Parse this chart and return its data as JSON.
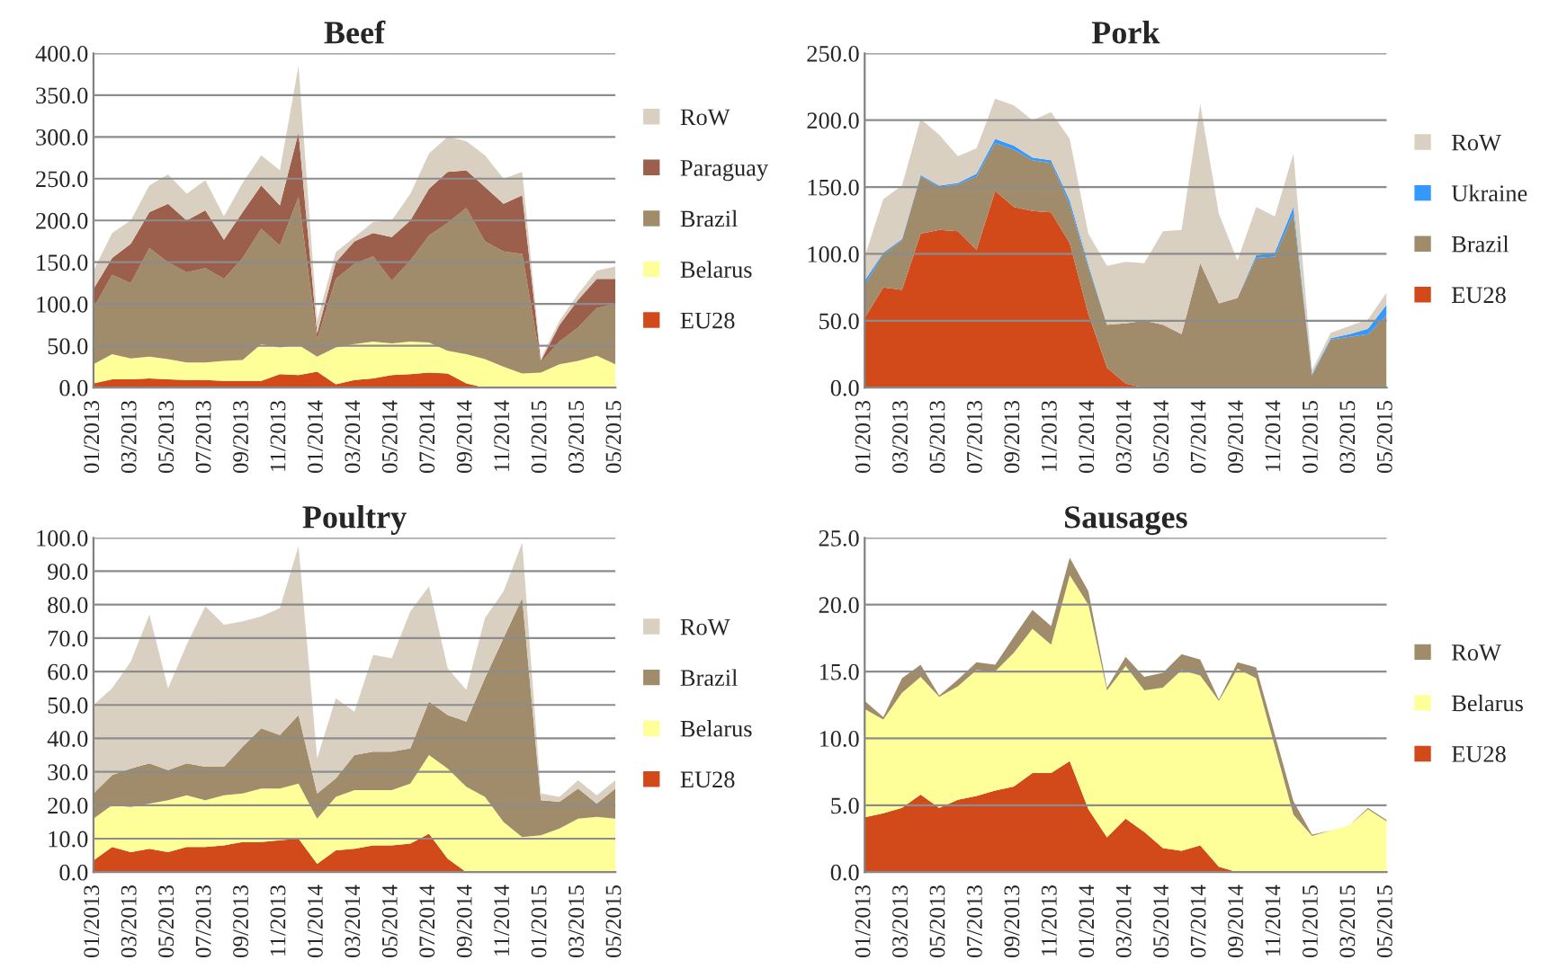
{
  "chart_data": [
    {
      "type": "area",
      "title": "Beef",
      "stacked": true,
      "grid": "y",
      "legend": "right",
      "categories": [
        "01/2013",
        null,
        "03/2013",
        null,
        "05/2013",
        null,
        "07/2013",
        null,
        "09/2013",
        null,
        "11/2013",
        null,
        "01/2014",
        null,
        "03/2014",
        null,
        "05/2014",
        null,
        "07/2014",
        null,
        "09/2014",
        null,
        "11/2014",
        null,
        "01/2015",
        null,
        "03/2015",
        null,
        "05/2015"
      ],
      "ylim": [
        0,
        400
      ],
      "yticks": [
        {
          "value": 0,
          "label": "0.0"
        },
        {
          "value": 50,
          "label": "50.0"
        },
        {
          "value": 100,
          "label": "100.0"
        },
        {
          "value": 150,
          "label": "150.0"
        },
        {
          "value": 200,
          "label": "200.0"
        },
        {
          "value": 250,
          "label": "250.0"
        },
        {
          "value": 300,
          "label": "300.0"
        },
        {
          "value": 350,
          "label": "350.0"
        },
        {
          "value": 400,
          "label": "400.0"
        }
      ],
      "series": [
        {
          "name": "EU28",
          "color": "#d24a1a",
          "values": [
            5,
            10,
            10,
            11,
            10,
            9,
            9,
            8,
            8,
            8,
            16,
            15,
            19,
            4,
            9,
            11,
            15,
            16,
            18,
            17,
            5,
            0,
            0,
            0,
            0,
            0,
            0,
            0,
            0
          ]
        },
        {
          "name": "Belarus",
          "color": "#ffff99",
          "values": [
            23,
            30,
            25,
            26,
            24,
            21,
            21,
            24,
            25,
            44,
            32,
            36,
            18,
            44,
            43,
            44,
            38,
            39,
            36,
            27,
            35,
            34,
            25,
            17,
            18,
            28,
            32,
            38,
            28
          ]
        },
        {
          "name": "Brazil",
          "color": "#a08c6a",
          "values": [
            67,
            95,
            90,
            130,
            116,
            108,
            113,
            98,
            122,
            138,
            122,
            177,
            21,
            82,
            96,
            102,
            75,
            97,
            128,
            153,
            175,
            141,
            138,
            143,
            12,
            27,
            40,
            57,
            72
          ]
        },
        {
          "name": "Paraguay",
          "color": "#9c5f4c",
          "values": [
            23,
            20,
            47,
            43,
            70,
            62,
            69,
            47,
            55,
            52,
            48,
            77,
            7,
            20,
            27,
            28,
            52,
            48,
            56,
            61,
            45,
            65,
            57,
            70,
            2,
            20,
            33,
            35,
            30
          ]
        },
        {
          "name": "RoW",
          "color": "#d9d0c1",
          "values": [
            22,
            30,
            28,
            32,
            35,
            32,
            36,
            28,
            35,
            36,
            42,
            80,
            15,
            12,
            5,
            13,
            20,
            32,
            42,
            42,
            35,
            38,
            30,
            28,
            3,
            5,
            7,
            10,
            15
          ]
        }
      ]
    },
    {
      "type": "area",
      "title": "Pork",
      "stacked": true,
      "grid": "y",
      "legend": "right",
      "categories": [
        "01/2013",
        null,
        "03/2013",
        null,
        "05/2013",
        null,
        "07/2013",
        null,
        "09/2013",
        null,
        "11/2013",
        null,
        "01/2014",
        null,
        "03/2014",
        null,
        "05/2014",
        null,
        "07/2014",
        null,
        "09/2014",
        null,
        "11/2014",
        null,
        "01/2015",
        null,
        "03/2015",
        null,
        "05/2015"
      ],
      "ylim": [
        0,
        250
      ],
      "yticks": [
        {
          "value": 0,
          "label": "0.0"
        },
        {
          "value": 50,
          "label": "50.0"
        },
        {
          "value": 100,
          "label": "100.0"
        },
        {
          "value": 150,
          "label": "150.0"
        },
        {
          "value": 200,
          "label": "200.0"
        },
        {
          "value": 250,
          "label": "250.0"
        }
      ],
      "series": [
        {
          "name": "EU28",
          "color": "#d24a1a",
          "values": [
            52,
            75,
            73,
            115,
            118,
            117,
            103,
            147,
            135,
            132,
            131,
            108,
            55,
            15,
            3,
            0,
            0,
            0,
            0,
            0,
            0,
            0,
            0,
            0,
            0,
            0,
            0,
            0,
            0
          ]
        },
        {
          "name": "Brazil",
          "color": "#a08c6a",
          "values": [
            25,
            25,
            37,
            43,
            32,
            35,
            55,
            36,
            43,
            38,
            37,
            29,
            35,
            32,
            45,
            50,
            47,
            40,
            93,
            63,
            67,
            97,
            98,
            130,
            9,
            36,
            38,
            40,
            54
          ]
        },
        {
          "name": "Ukraine",
          "color": "#3399ff",
          "values": [
            3,
            1,
            1,
            1,
            1,
            1,
            2,
            3,
            3,
            2,
            2,
            3,
            2,
            0,
            0,
            0,
            0,
            0,
            0,
            0,
            0,
            2,
            3,
            5,
            1,
            1,
            2,
            4,
            8
          ]
        },
        {
          "name": "RoW",
          "color": "#d9d0c1",
          "values": [
            18,
            40,
            40,
            42,
            38,
            20,
            19,
            30,
            30,
            28,
            36,
            46,
            23,
            44,
            46,
            43,
            70,
            78,
            119,
            67,
            28,
            36,
            27,
            40,
            3,
            4,
            6,
            7,
            9
          ]
        }
      ]
    },
    {
      "type": "area",
      "title": "Poultry",
      "stacked": true,
      "grid": "y",
      "legend": "right",
      "categories": [
        "01/2013",
        null,
        "03/2013",
        null,
        "05/2013",
        null,
        "07/2013",
        null,
        "09/2013",
        null,
        "11/2013",
        null,
        "01/2014",
        null,
        "03/2014",
        null,
        "05/2014",
        null,
        "07/2014",
        null,
        "09/2014",
        null,
        "11/2014",
        null,
        "01/2015",
        null,
        "03/2015",
        null,
        "05/2015"
      ],
      "ylim": [
        0,
        100
      ],
      "yticks": [
        {
          "value": 0,
          "label": "0.0"
        },
        {
          "value": 10,
          "label": "10.0"
        },
        {
          "value": 20,
          "label": "20.0"
        },
        {
          "value": 30,
          "label": "30.0"
        },
        {
          "value": 40,
          "label": "40.0"
        },
        {
          "value": 50,
          "label": "50.0"
        },
        {
          "value": 60,
          "label": "60.0"
        },
        {
          "value": 70,
          "label": "70.0"
        },
        {
          "value": 80,
          "label": "80.0"
        },
        {
          "value": 90,
          "label": "90.0"
        },
        {
          "value": 100,
          "label": "100.0"
        }
      ],
      "series": [
        {
          "name": "EU28",
          "color": "#d24a1a",
          "values": [
            3.5,
            7.5,
            6,
            7,
            6,
            7.5,
            7.5,
            8,
            9,
            9,
            9.5,
            10,
            2.5,
            6.5,
            7,
            8,
            8,
            8.5,
            11.5,
            4,
            0,
            0,
            0,
            0,
            0,
            0,
            0,
            0,
            0
          ]
        },
        {
          "name": "Belarus",
          "color": "#ffff99",
          "values": [
            12.5,
            12.5,
            13.5,
            13.5,
            15.5,
            15.5,
            14,
            15,
            14.5,
            16,
            15.5,
            16.5,
            13.5,
            16,
            17.5,
            16.5,
            16.5,
            18,
            23.5,
            27,
            25.5,
            22.5,
            15,
            10.5,
            11,
            13,
            16,
            16.5,
            16
          ]
        },
        {
          "name": "Brazil",
          "color": "#a08c6a",
          "values": [
            7.5,
            9,
            11.5,
            12,
            9,
            9.5,
            10,
            8.5,
            14,
            18,
            16,
            20.5,
            7.5,
            5.5,
            10.5,
            11.5,
            11.5,
            10.5,
            16,
            16,
            19.5,
            35.5,
            55,
            71.5,
            10.5,
            8,
            9,
            4,
            9
          ]
        },
        {
          "name": "RoW",
          "color": "#d9d0c1",
          "values": [
            26.5,
            26,
            32,
            44.5,
            24.5,
            35.5,
            48,
            42.5,
            37.5,
            33.5,
            38,
            50.5,
            10.5,
            24,
            13,
            29,
            28,
            41,
            34.5,
            14,
            9.5,
            18,
            14,
            16.5,
            2,
            1.5,
            2.5,
            2.5,
            2.5
          ]
        }
      ]
    },
    {
      "type": "area",
      "title": "Sausages",
      "stacked": true,
      "grid": "y",
      "legend": "right",
      "categories": [
        "01/2013",
        null,
        "03/2013",
        null,
        "05/2013",
        null,
        "07/2013",
        null,
        "09/2013",
        null,
        "11/2013",
        null,
        "01/2014",
        null,
        "03/2014",
        null,
        "05/2014",
        null,
        "07/2014",
        null,
        "09/2014",
        null,
        "11/2014",
        null,
        "01/2015",
        null,
        "03/2015",
        null,
        "05/2015"
      ],
      "ylim": [
        0,
        25
      ],
      "yticks": [
        {
          "value": 0,
          "label": "0.0"
        },
        {
          "value": 5,
          "label": "5.0"
        },
        {
          "value": 10,
          "label": "10.0"
        },
        {
          "value": 15,
          "label": "15.0"
        },
        {
          "value": 20,
          "label": "20.0"
        },
        {
          "value": 25,
          "label": "25.0"
        }
      ],
      "series": [
        {
          "name": "EU28",
          "color": "#d24a1a",
          "values": [
            4.1,
            4.4,
            4.8,
            5.8,
            4.8,
            5.4,
            5.7,
            6.1,
            6.4,
            7.4,
            7.4,
            8.3,
            4.7,
            2.6,
            4.0,
            3.0,
            1.8,
            1.6,
            2.0,
            0.4,
            0,
            0,
            0,
            0,
            0,
            0,
            0,
            0,
            0
          ]
        },
        {
          "name": "Belarus",
          "color": "#ffff99",
          "values": [
            8.1,
            7.0,
            8.6,
            8.8,
            8.3,
            8.5,
            9.4,
            8.9,
            10.0,
            10.8,
            9.6,
            13.9,
            15.3,
            11.0,
            11.4,
            10.6,
            12.0,
            13.5,
            12.7,
            12.4,
            15.2,
            14.5,
            9.4,
            4.3,
            2.7,
            3.1,
            3.5,
            4.7,
            3.8
          ]
        },
        {
          "name": "RoW",
          "color": "#a08c6a",
          "values": [
            0.6,
            0.2,
            1.1,
            0.9,
            0.1,
            0.5,
            0.6,
            0.5,
            1.2,
            1.4,
            1.4,
            1.3,
            1.0,
            0.2,
            0.7,
            1.0,
            1.1,
            1.2,
            1.2,
            0.1,
            0.5,
            0.8,
            0.9,
            1.0,
            0.1,
            0,
            0,
            0.1,
            0.1
          ]
        }
      ]
    }
  ]
}
